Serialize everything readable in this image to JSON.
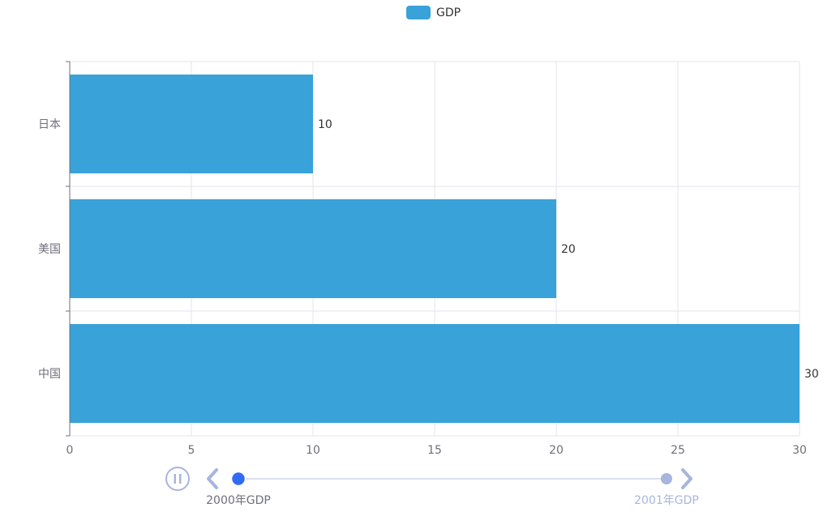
{
  "chart_data": {
    "type": "bar",
    "orientation": "horizontal",
    "categories": [
      "中国",
      "美国",
      "日本"
    ],
    "series": [
      {
        "name": "GDP",
        "values": [
          30,
          20,
          10
        ],
        "color": "#38a2d9"
      }
    ],
    "xlim": [
      0,
      30
    ],
    "x_ticks": [
      0,
      5,
      10,
      15,
      20,
      25,
      30
    ],
    "grid": true,
    "legend_position": "top-center",
    "data_labels": true
  },
  "timeline": {
    "items": [
      "2000年GDP",
      "2001年GDP"
    ],
    "current_index": 0,
    "playing": true,
    "colors": {
      "line": "#dadff0",
      "active_dot": "#316bf3",
      "inactive_dot": "#a8b5dd",
      "control": "#a8b5dd",
      "active_label": "#6e7079",
      "inactive_label": "#a8b5dd"
    }
  },
  "icons": {
    "play_pause": "pause-icon",
    "prev": "chevron-left-icon",
    "next": "chevron-right-icon"
  },
  "colors": {
    "axis": "#6e7079",
    "grid": "#e0e6f1",
    "label_text": "#6e7079",
    "value_text": "#333333"
  }
}
